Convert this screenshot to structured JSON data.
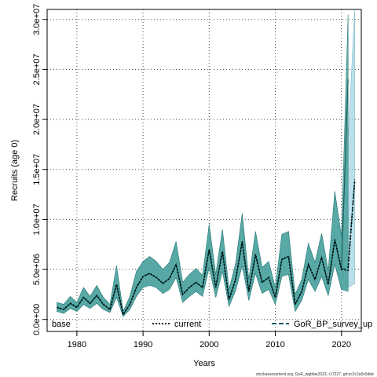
{
  "chart_data": {
    "type": "line",
    "xlabel": "Years",
    "ylabel": "Recruits (age 0)",
    "xlim": [
      1975.5,
      2023
    ],
    "ylim": [
      -1200000,
      31000000
    ],
    "x_ticks": [
      1980,
      1990,
      2000,
      2010,
      2020
    ],
    "x_tick_labels": [
      "1980",
      "1990",
      "2000",
      "2010",
      "2020"
    ],
    "y_ticks": [
      0,
      5000000,
      10000000,
      15000000,
      20000000,
      25000000,
      30000000
    ],
    "y_tick_labels": [
      "0.0e+00",
      "5.0e+06",
      "1.0e+07",
      "1.5e+07",
      "2.0e+07",
      "2.5e+07",
      "3.0e+07"
    ],
    "grid": true,
    "legend": {
      "placement": "bottom",
      "entries": [
        "base",
        "current",
        "GoR_BP_survey_up"
      ]
    },
    "caption": "stockassessment.org, GoR_wgbfas2023, r17227, git:ec2c2a0c6dde",
    "series": [
      {
        "name": "base",
        "color": "#1a7f7a",
        "x": [
          1977,
          1978,
          1979,
          1980,
          1981,
          1982,
          1983,
          1984,
          1985,
          1986,
          1987,
          1988,
          1989,
          1990,
          1991,
          1992,
          1993,
          1994,
          1995,
          1996,
          1997,
          1998,
          1999,
          2000,
          2001,
          2002,
          2003,
          2004,
          2005,
          2006,
          2007,
          2008,
          2009,
          2010,
          2011,
          2012,
          2013,
          2014,
          2015,
          2016,
          2017,
          2018,
          2019,
          2020,
          2021
        ],
        "y": [
          1200000,
          1000000,
          1600000,
          1200000,
          2200000,
          1600000,
          2400000,
          1500000,
          1000000,
          3500000,
          500000,
          1500000,
          3200000,
          4300000,
          4600000,
          4200000,
          3600000,
          4100000,
          5500000,
          2500000,
          3200000,
          3700000,
          3200000,
          7000000,
          3200000,
          6800000,
          2000000,
          4000000,
          7800000,
          2800000,
          6500000,
          3700000,
          4200000,
          2200000,
          6000000,
          6300000,
          1500000,
          2800000,
          5500000,
          4000000,
          6200000,
          3500000,
          8000000,
          5000000,
          24000000
        ],
        "lower": [
          800000,
          600000,
          1100000,
          800000,
          1500000,
          1100000,
          1600000,
          1000000,
          700000,
          2200000,
          300000,
          1000000,
          2300000,
          3200000,
          3400000,
          3200000,
          2600000,
          3000000,
          4200000,
          1700000,
          2300000,
          2800000,
          2300000,
          5200000,
          2200000,
          4800000,
          1300000,
          2900000,
          5400000,
          1900000,
          4600000,
          2600000,
          3000000,
          1500000,
          4300000,
          4500000,
          800000,
          1900000,
          4000000,
          2800000,
          4300000,
          2400000,
          5500000,
          3000000,
          2800000
        ],
        "upper": [
          1700000,
          1500000,
          2300000,
          1700000,
          3200000,
          2300000,
          3400000,
          2200000,
          1500000,
          5400000,
          800000,
          2300000,
          4800000,
          5800000,
          6300000,
          5800000,
          5000000,
          5700000,
          7800000,
          3700000,
          4500000,
          5100000,
          4400000,
          9500000,
          4500000,
          9000000,
          3000000,
          5600000,
          10600000,
          4000000,
          8800000,
          5200000,
          5800000,
          3200000,
          8500000,
          8800000,
          2500000,
          4000000,
          7600000,
          5700000,
          8600000,
          4900000,
          12800000,
          8300000,
          30500000
        ]
      },
      {
        "name": "current",
        "color": "#000000",
        "x": [
          1977,
          1978,
          1979,
          1980,
          1981,
          1982,
          1983,
          1984,
          1985,
          1986,
          1987,
          1988,
          1989,
          1990,
          1991,
          1992,
          1993,
          1994,
          1995,
          1996,
          1997,
          1998,
          1999,
          2000,
          2001,
          2002,
          2003,
          2004,
          2005,
          2006,
          2007,
          2008,
          2009,
          2010,
          2011,
          2012,
          2013,
          2014,
          2015,
          2016,
          2017,
          2018,
          2019,
          2020,
          2021,
          2022
        ],
        "y": [
          1200000,
          1000000,
          1600000,
          1200000,
          2200000,
          1600000,
          2400000,
          1500000,
          1000000,
          3500000,
          500000,
          1500000,
          3200000,
          4300000,
          4600000,
          4200000,
          3600000,
          4100000,
          5500000,
          2500000,
          3200000,
          3700000,
          3200000,
          7000000,
          3200000,
          6800000,
          2000000,
          4000000,
          7800000,
          2800000,
          6500000,
          3700000,
          4200000,
          2200000,
          6000000,
          6300000,
          1500000,
          2800000,
          5500000,
          4000000,
          6200000,
          3500000,
          8000000,
          5000000,
          4900000,
          14000000
        ]
      },
      {
        "name": "GoR_BP_survey_up",
        "color": "#0a5a5a",
        "x": [
          1977,
          1978,
          1979,
          1980,
          1981,
          1982,
          1983,
          1984,
          1985,
          1986,
          1987,
          1988,
          1989,
          1990,
          1991,
          1992,
          1993,
          1994,
          1995,
          1996,
          1997,
          1998,
          1999,
          2000,
          2001,
          2002,
          2003,
          2004,
          2005,
          2006,
          2007,
          2008,
          2009,
          2010,
          2011,
          2012,
          2013,
          2014,
          2015,
          2016,
          2017,
          2018,
          2019,
          2020,
          2021,
          2022
        ],
        "y": [
          1200000,
          1000000,
          1600000,
          1200000,
          2200000,
          1600000,
          2400000,
          1500000,
          1000000,
          3500000,
          500000,
          1500000,
          3200000,
          4300000,
          4600000,
          4200000,
          3600000,
          4100000,
          5500000,
          2500000,
          3200000,
          3700000,
          3200000,
          7000000,
          3200000,
          6800000,
          2000000,
          4000000,
          7800000,
          2800000,
          6500000,
          3700000,
          4200000,
          2200000,
          6000000,
          6300000,
          1500000,
          2800000,
          5500000,
          4000000,
          6200000,
          3500000,
          8000000,
          5000000,
          5200000,
          13800000
        ],
        "lower": [
          800000,
          600000,
          1100000,
          800000,
          1500000,
          1100000,
          1600000,
          1000000,
          700000,
          2200000,
          300000,
          1000000,
          2300000,
          3200000,
          3400000,
          3200000,
          2600000,
          3000000,
          4200000,
          1700000,
          2300000,
          2800000,
          2300000,
          5200000,
          2200000,
          4800000,
          1300000,
          2900000,
          5400000,
          1900000,
          4600000,
          2600000,
          3000000,
          1500000,
          4300000,
          4500000,
          800000,
          1900000,
          4000000,
          2800000,
          4300000,
          2400000,
          5500000,
          3000000,
          3200000,
          3600000
        ],
        "upper": [
          1700000,
          1500000,
          2300000,
          1700000,
          3200000,
          2300000,
          3400000,
          2200000,
          1500000,
          5400000,
          800000,
          2300000,
          4800000,
          5800000,
          6300000,
          5800000,
          5000000,
          5700000,
          7800000,
          3700000,
          4500000,
          5100000,
          4400000,
          9500000,
          4500000,
          9000000,
          3000000,
          5600000,
          10600000,
          4000000,
          8800000,
          5200000,
          5800000,
          3200000,
          8500000,
          8800000,
          2500000,
          4000000,
          7600000,
          5700000,
          8600000,
          4900000,
          12800000,
          8300000,
          18000000,
          31000000
        ]
      }
    ]
  }
}
